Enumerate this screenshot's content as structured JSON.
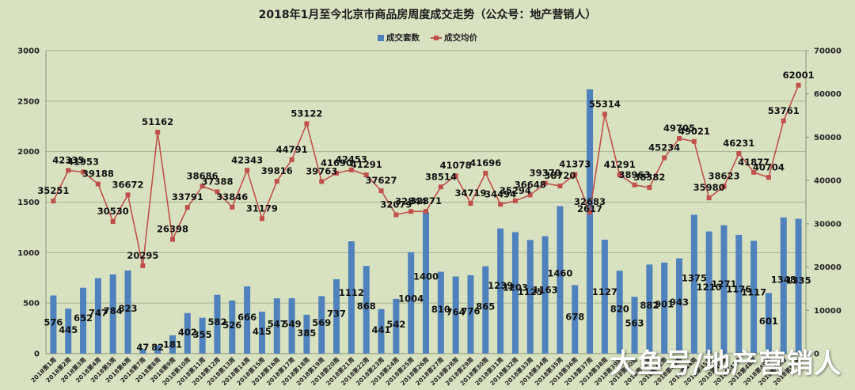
{
  "chart_data": {
    "type": "bar+line",
    "title": "2018年1月至今北京市商品房周度成交走势（公众号：地产营销人）",
    "legend": [
      {
        "name": "成交套数",
        "type": "bar",
        "color": "#4f81bd"
      },
      {
        "name": "成交均价",
        "type": "line",
        "color": "#c0504d"
      }
    ],
    "legend_position": "top",
    "grid": true,
    "categories": [
      "2018第1周",
      "2018第2周",
      "2018第3周",
      "2018第4周",
      "2018第5周",
      "2018第6周",
      "2018第7周",
      "2018第8周",
      "2018第9周",
      "2018第10周",
      "2018第11周",
      "2018第12周",
      "2018第13周",
      "2018第14周",
      "2018第15周",
      "2018第16周",
      "2018第17周",
      "2018第18周",
      "2018第19周",
      "2018第20周",
      "2018第21周",
      "2018第22周",
      "2018第23周",
      "2018第24周",
      "2018第25周",
      "2018第26周",
      "2018第27周",
      "2018第28周",
      "2018第29周",
      "2018第30周",
      "2018第31周",
      "2018第32周",
      "2018第33周",
      "2018第34周",
      "2018第35周",
      "2018第36周",
      "2018第37周",
      "2018第38周",
      "2018第39周",
      "2018第40周",
      "2018第41周",
      "2018第42周",
      "2018第43周",
      "2018第44周",
      "2018第45周",
      "2018第46周",
      "2018第47周",
      "2018第48周",
      "2018第49周",
      "2018第50周",
      "2018第51周"
    ],
    "series": [
      {
        "name": "成交套数",
        "axis": "left",
        "type": "bar",
        "values": [
          576,
          445,
          652,
          747,
          784,
          823,
          47,
          82,
          181,
          402,
          355,
          582,
          526,
          666,
          415,
          547,
          549,
          385,
          569,
          737,
          1112,
          868,
          441,
          542,
          1004,
          1400,
          810,
          764,
          776,
          865,
          1239,
          1203,
          1125,
          1163,
          1460,
          678,
          2617,
          1127,
          820,
          563,
          882,
          901,
          943,
          1375,
          1210,
          1271,
          1176,
          1117,
          601,
          1348,
          1335
        ]
      },
      {
        "name": "成交均价",
        "axis": "right",
        "type": "line",
        "values": [
          35251,
          42335,
          41953,
          39188,
          30530,
          36672,
          20295,
          51162,
          26398,
          33791,
          38686,
          37388,
          33846,
          42343,
          31179,
          39816,
          44791,
          53122,
          39763,
          41690,
          42453,
          41291,
          37627,
          32079,
          32844,
          32871,
          38514,
          41078,
          34719,
          41696,
          34494,
          35294,
          36648,
          39370,
          38720,
          41373,
          32683,
          55314,
          41291,
          38963,
          38382,
          45234,
          49705,
          49021,
          35980,
          38623,
          46231,
          41877,
          40704,
          53761,
          62001
        ]
      }
    ],
    "y_left": {
      "min": 0,
      "max": 3000,
      "ticks": [
        0,
        500,
        1000,
        1500,
        2000,
        2500,
        3000
      ]
    },
    "y_right": {
      "min": 0,
      "max": 70000,
      "ticks": [
        0,
        10000,
        20000,
        30000,
        40000,
        50000,
        60000,
        70000
      ]
    },
    "xlabel": "",
    "ylabel": ""
  },
  "watermark": "大鱼号/地产营销人"
}
